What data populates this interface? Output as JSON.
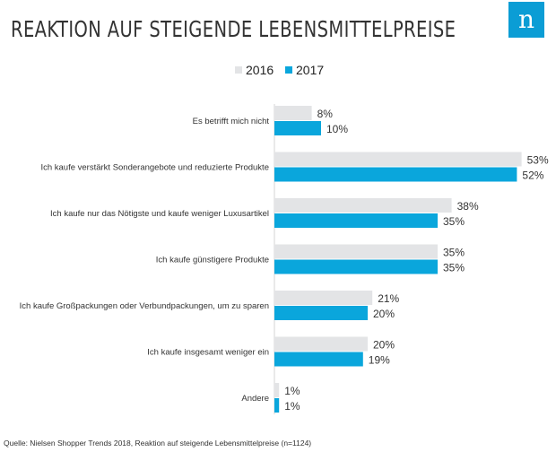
{
  "header": {
    "title": "REAKTION AUF STEIGENDE LEBENSMITTELPREISE",
    "logo_letter": "n",
    "brand_color": "#0b9dd5"
  },
  "chart_data": {
    "type": "bar",
    "orientation": "horizontal",
    "categories": [
      "Es betrifft mich nicht",
      "Ich kaufe verstärkt Sonderangebote und reduzierte Produkte",
      "Ich kaufe nur das Nötigste und kaufe weniger Luxusartikel",
      "Ich kaufe günstigere Produkte",
      "Ich kaufe Großpackungen oder Verbundpackungen, um zu sparen",
      "Ich kaufe insgesamt weniger ein",
      "Andere"
    ],
    "series": [
      {
        "name": "2016",
        "color": "#e3e4e6",
        "values": [
          8,
          53,
          38,
          35,
          21,
          20,
          1
        ]
      },
      {
        "name": "2017",
        "color": "#0aa6dc",
        "values": [
          10,
          52,
          35,
          35,
          20,
          19,
          1
        ]
      }
    ],
    "value_suffix": "%",
    "legend_position": "top",
    "grid": false
  },
  "footer": {
    "source": "Quelle: Nielsen Shopper Trends 2018, Reaktion auf steigende Lebensmittelpreise (n=1124)"
  }
}
